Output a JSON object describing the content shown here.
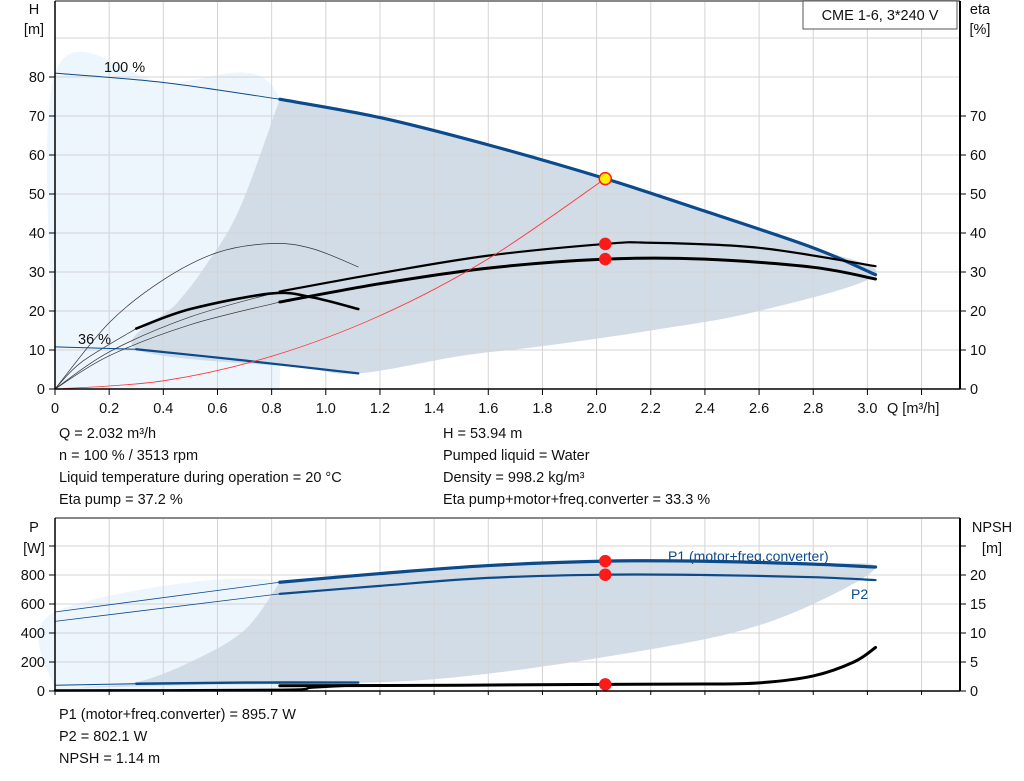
{
  "chart_data": [
    {
      "type": "line",
      "title_box": "CME 1-6, 3*240 V",
      "ylabel_left": [
        "H",
        "[m]"
      ],
      "ylabel_right": [
        "eta",
        "[%]"
      ],
      "xlabel": "Q [m³/h]",
      "xlim": [
        0,
        3.3
      ],
      "ylim_left": [
        0,
        100
      ],
      "ylim_right": [
        0,
        100
      ],
      "grid": true,
      "x_ticks": [
        "0",
        "0.2",
        "0.4",
        "0.6",
        "0.8",
        "1.0",
        "1.2",
        "1.4",
        "1.6",
        "1.8",
        "2.0",
        "2.2",
        "2.4",
        "2.6",
        "2.8",
        "3.0"
      ],
      "y_ticks_left": [
        "0",
        "10",
        "20",
        "30",
        "40",
        "50",
        "60",
        "70",
        "80"
      ],
      "y_ticks_right": [
        "0",
        "10",
        "20",
        "30",
        "40",
        "50",
        "60",
        "70"
      ],
      "speed_labels": [
        "100 %",
        "36 %"
      ],
      "areas": [
        {
          "fill": "#edf5fd",
          "points": [
            [
              0,
              0
            ],
            [
              0,
              81
            ],
            [
              0.4,
              78.6
            ],
            [
              0.83,
              74.3
            ],
            [
              0.83,
              0
            ]
          ]
        },
        {
          "fill": "#d1dce7",
          "points": [
            [
              0.83,
              74.3
            ],
            [
              1.2,
              69.6
            ],
            [
              1.6,
              62.6
            ],
            [
              2.032,
              53.94
            ],
            [
              2.4,
              45.6
            ],
            [
              2.8,
              36.2
            ],
            [
              3.03,
              29.3
            ],
            [
              2.6,
              20
            ],
            [
              2.2,
              15
            ],
            [
              1.8,
              11
            ],
            [
              1.5,
              8.5
            ],
            [
              1.12,
              4
            ],
            [
              0.9,
              5.5
            ],
            [
              0.3,
              10.2
            ],
            [
              0.45,
              22
            ],
            [
              0.55,
              31
            ],
            [
              0.68,
              46
            ],
            [
              0.83,
              74.3
            ]
          ]
        }
      ],
      "series": [
        {
          "axis": "left",
          "color": "#0b4a8b",
          "width": 1,
          "points": [
            [
              0,
              81
            ],
            [
              0.4,
              78.6
            ],
            [
              0.83,
              74.3
            ]
          ]
        },
        {
          "axis": "left",
          "color": "#0b4a8b",
          "width": 3.2,
          "points": [
            [
              0.83,
              74.3
            ],
            [
              1.2,
              69.6
            ],
            [
              1.6,
              62.6
            ],
            [
              2.032,
              53.94
            ],
            [
              2.4,
              45.6
            ],
            [
              2.8,
              36.2
            ],
            [
              3.03,
              29.3
            ]
          ]
        },
        {
          "axis": "left",
          "color": "#0b4a8b",
          "width": 1,
          "points": [
            [
              0,
              10.8
            ],
            [
              0.3,
              10.2
            ]
          ]
        },
        {
          "axis": "left",
          "color": "#0b4a8b",
          "width": 2.2,
          "points": [
            [
              0.3,
              10.2
            ],
            [
              0.7,
              7.3
            ],
            [
              1.12,
              4
            ]
          ]
        },
        {
          "axis": "right",
          "color": "#333",
          "width": 0.7,
          "points": [
            [
              0,
              0
            ],
            [
              0.2,
              17
            ],
            [
              0.4,
              28
            ],
            [
              0.6,
              35
            ],
            [
              0.8,
              37.3
            ],
            [
              0.95,
              36
            ],
            [
              1.12,
              31.3
            ]
          ]
        },
        {
          "axis": "right",
          "color": "#333",
          "width": 0.7,
          "points": [
            [
              0,
              0
            ],
            [
              0.1,
              7
            ],
            [
              0.3,
              15.5
            ]
          ]
        },
        {
          "axis": "right",
          "color": "#333",
          "width": 0.7,
          "points": [
            [
              0,
              0
            ],
            [
              0.2,
              9.5
            ],
            [
              0.5,
              18.5
            ],
            [
              0.83,
              25
            ]
          ]
        },
        {
          "axis": "right",
          "color": "#333",
          "width": 0.7,
          "points": [
            [
              0,
              0
            ],
            [
              0.2,
              8.5
            ],
            [
              0.5,
              16.5
            ],
            [
              0.83,
              22.3
            ]
          ]
        },
        {
          "axis": "right",
          "color": "#000",
          "width": 2.6,
          "points": [
            [
              0.3,
              15.5
            ],
            [
              0.5,
              20.5
            ],
            [
              0.8,
              24.5
            ],
            [
              0.95,
              23.5
            ],
            [
              1.12,
              20.5
            ]
          ]
        },
        {
          "axis": "right",
          "color": "#000",
          "width": 2.2,
          "points": [
            [
              0.83,
              25
            ],
            [
              1.2,
              29.7
            ],
            [
              1.6,
              34.2
            ],
            [
              2.032,
              37.2
            ],
            [
              2.2,
              37.5
            ],
            [
              2.6,
              36.2
            ],
            [
              3.03,
              31.5
            ]
          ]
        },
        {
          "axis": "right",
          "color": "#000",
          "width": 3,
          "points": [
            [
              0.83,
              22.3
            ],
            [
              1.2,
              27
            ],
            [
              1.6,
              31
            ],
            [
              2.032,
              33.3
            ],
            [
              2.4,
              33.3
            ],
            [
              2.8,
              31.2
            ],
            [
              3.03,
              28.2
            ]
          ]
        },
        {
          "axis": "left",
          "color": "#ff3030",
          "width": 0.8,
          "points": [
            [
              0,
              0
            ],
            [
              0.4,
              2.1
            ],
            [
              0.8,
              8.4
            ],
            [
              1.2,
              18.8
            ],
            [
              1.6,
              33.4
            ],
            [
              2.032,
              53.94
            ]
          ]
        }
      ],
      "markers": [
        {
          "axis": "left",
          "x": 2.032,
          "y": 53.94,
          "fill": "#ffee00",
          "stroke": "#ff1a1a"
        },
        {
          "axis": "right",
          "x": 2.032,
          "y": 37.2,
          "fill": "#ff1a1a",
          "stroke": "#ff1a1a"
        },
        {
          "axis": "right",
          "x": 2.032,
          "y": 33.3,
          "fill": "#ff1a1a",
          "stroke": "#ff1a1a"
        }
      ]
    },
    {
      "type": "line",
      "ylabel_left": [
        "P",
        "[W]"
      ],
      "ylabel_right": [
        "NPSH",
        "[m]"
      ],
      "xlim": [
        0,
        3.3
      ],
      "ylim_left": [
        0,
        1200
      ],
      "ylim_right": [
        0,
        30
      ],
      "grid": true,
      "y_ticks_left": [
        "0",
        "200",
        "400",
        "600",
        "800"
      ],
      "y_ticks_right": [
        "0",
        "5",
        "10",
        "15",
        "20"
      ],
      "series_labels": [
        "P1 (motor+freq.converter)",
        "P2"
      ],
      "areas": [
        {
          "fill": "#edf5fd",
          "points": [
            [
              0,
              0
            ],
            [
              0,
              545
            ],
            [
              0.83,
              750
            ],
            [
              0.83,
              0
            ]
          ]
        },
        {
          "fill": "#d1dce7",
          "points": [
            [
              0.83,
              750
            ],
            [
              1.2,
              810
            ],
            [
              1.6,
              865
            ],
            [
              2.032,
              895.7
            ],
            [
              2.4,
              895
            ],
            [
              2.8,
              875
            ],
            [
              3.03,
              855
            ],
            [
              2.8,
              600
            ],
            [
              2.5,
              400
            ],
            [
              2.032,
              235
            ],
            [
              1.6,
              120
            ],
            [
              1.2,
              60
            ],
            [
              0.5,
              40
            ],
            [
              0.1,
              25
            ],
            [
              0.3,
              60
            ],
            [
              0.5,
              200
            ],
            [
              0.7,
              420
            ],
            [
              0.83,
              750
            ]
          ]
        }
      ],
      "series": [
        {
          "axis": "left",
          "color": "#0b4a8b",
          "width": 0.8,
          "points": [
            [
              0,
              545
            ],
            [
              0.83,
              750
            ]
          ]
        },
        {
          "axis": "left",
          "color": "#0b4a8b",
          "width": 3.2,
          "points": [
            [
              0.83,
              750
            ],
            [
              1.2,
              810
            ],
            [
              1.6,
              865
            ],
            [
              2.032,
              895.7
            ],
            [
              2.4,
              895
            ],
            [
              2.8,
              875
            ],
            [
              3.03,
              855
            ]
          ]
        },
        {
          "axis": "left",
          "color": "#0b4a8b",
          "width": 0.8,
          "points": [
            [
              0,
              480
            ],
            [
              0.83,
              670
            ]
          ]
        },
        {
          "axis": "left",
          "color": "#0b4a8b",
          "width": 2.2,
          "points": [
            [
              0.83,
              670
            ],
            [
              1.2,
              725
            ],
            [
              1.6,
              780
            ],
            [
              2.032,
              802.1
            ],
            [
              2.4,
              800
            ],
            [
              2.8,
              785
            ],
            [
              3.03,
              765
            ]
          ]
        },
        {
          "axis": "left",
          "color": "#0b4a8b",
          "width": 1,
          "points": [
            [
              0,
              40
            ],
            [
              0.3,
              50
            ]
          ]
        },
        {
          "axis": "left",
          "color": "#0b4a8b",
          "width": 2.4,
          "points": [
            [
              0.3,
              50
            ],
            [
              0.7,
              58
            ],
            [
              1.12,
              58
            ]
          ]
        },
        {
          "axis": "right",
          "color": "#000",
          "width": 2.4,
          "points": [
            [
              0,
              0.1
            ],
            [
              0.83,
              0.2
            ],
            [
              0.95,
              0.6
            ],
            [
              1.12,
              1.0
            ]
          ]
        },
        {
          "axis": "right",
          "color": "#000",
          "width": 3,
          "points": [
            [
              0.83,
              0.9
            ],
            [
              1.5,
              1.0
            ],
            [
              2.032,
              1.14
            ],
            [
              2.4,
              1.2
            ],
            [
              2.6,
              1.4
            ],
            [
              2.8,
              2.6
            ],
            [
              2.95,
              5
            ],
            [
              3.03,
              7.5
            ]
          ]
        }
      ],
      "markers": [
        {
          "axis": "left",
          "x": 2.032,
          "y": 895.7,
          "fill": "#ff1a1a",
          "stroke": "#ff1a1a"
        },
        {
          "axis": "left",
          "x": 2.032,
          "y": 802.1,
          "fill": "#ff1a1a",
          "stroke": "#ff1a1a"
        },
        {
          "axis": "right",
          "x": 2.032,
          "y": 1.14,
          "fill": "#ff1a1a",
          "stroke": "#ff1a1a"
        }
      ]
    }
  ],
  "duty_point": {
    "left": [
      "Q = 2.032 m³/h",
      "n = 100 % / 3513 rpm",
      "Liquid temperature during operation = 20 °C",
      "Eta pump = 37.2 %"
    ],
    "right": [
      "H = 53.94 m",
      "Pumped liquid = Water",
      "Density = 998.2 kg/m³",
      "Eta pump+motor+freq.converter = 33.3 %"
    ]
  },
  "power_info": [
    "P1 (motor+freq.converter) = 895.7 W",
    "P2 = 802.1 W",
    "NPSH = 1.14 m"
  ]
}
